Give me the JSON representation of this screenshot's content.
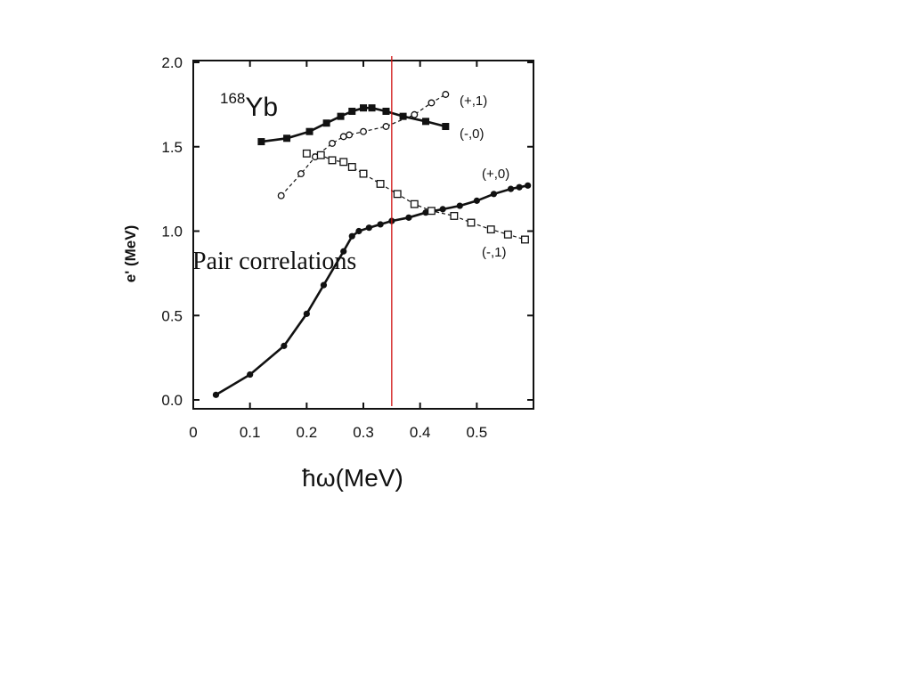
{
  "slide": {
    "overlay_text": "Pair correlations"
  },
  "chart_data": {
    "type": "line",
    "nucleus": {
      "mass": "168",
      "symbol": "Yb"
    },
    "xlabel": "ħω(MeV)",
    "ylabel": "e' (MeV)",
    "xlim": [
      0,
      0.6
    ],
    "ylim": [
      -0.05,
      2.05
    ],
    "xticks": [
      0,
      0.1,
      0.2,
      0.3,
      0.4,
      0.5
    ],
    "xtick_labels": [
      "0",
      "0.1",
      "0.2",
      "0.3",
      "0.4",
      "0.5"
    ],
    "yticks": [
      0.0,
      0.5,
      1.0,
      1.5,
      2.0
    ],
    "ytick_labels": [
      "0.0",
      "0.5",
      "1.0",
      "1.5",
      "2.0"
    ],
    "grid": false,
    "reference_line": {
      "x": 0.35,
      "color": "#d01010"
    },
    "series": [
      {
        "name": "(+,0)",
        "marker": "filled-circle",
        "line": "solid-thick",
        "x": [
          0.04,
          0.1,
          0.16,
          0.2,
          0.23,
          0.265,
          0.28,
          0.292,
          0.31,
          0.33,
          0.35,
          0.38,
          0.41,
          0.44,
          0.47,
          0.5,
          0.53,
          0.56,
          0.575,
          0.59
        ],
        "y": [
          0.03,
          0.15,
          0.32,
          0.51,
          0.68,
          0.88,
          0.97,
          1.0,
          1.02,
          1.04,
          1.06,
          1.08,
          1.11,
          1.13,
          1.15,
          1.18,
          1.22,
          1.25,
          1.26,
          1.27
        ]
      },
      {
        "name": "(-,0)",
        "marker": "filled-square",
        "line": "solid-thick",
        "x": [
          0.12,
          0.165,
          0.205,
          0.235,
          0.26,
          0.28,
          0.3,
          0.315,
          0.34,
          0.37,
          0.41,
          0.445
        ],
        "y": [
          1.53,
          1.55,
          1.59,
          1.64,
          1.68,
          1.71,
          1.73,
          1.73,
          1.71,
          1.68,
          1.65,
          1.62
        ]
      },
      {
        "name": "(+,1)",
        "marker": "open-circle",
        "line": "dashed",
        "x": [
          0.155,
          0.19,
          0.215,
          0.245,
          0.265,
          0.275,
          0.3,
          0.34,
          0.39,
          0.42,
          0.445
        ],
        "y": [
          1.21,
          1.34,
          1.44,
          1.52,
          1.56,
          1.57,
          1.59,
          1.62,
          1.69,
          1.76,
          1.81
        ]
      },
      {
        "name": "(-,1)",
        "marker": "open-square",
        "line": "dashed",
        "x": [
          0.2,
          0.225,
          0.245,
          0.265,
          0.28,
          0.3,
          0.33,
          0.36,
          0.39,
          0.42,
          0.46,
          0.49,
          0.525,
          0.555,
          0.585
        ],
        "y": [
          1.46,
          1.45,
          1.42,
          1.41,
          1.38,
          1.34,
          1.28,
          1.22,
          1.16,
          1.12,
          1.09,
          1.05,
          1.01,
          0.98,
          0.95
        ]
      }
    ]
  }
}
